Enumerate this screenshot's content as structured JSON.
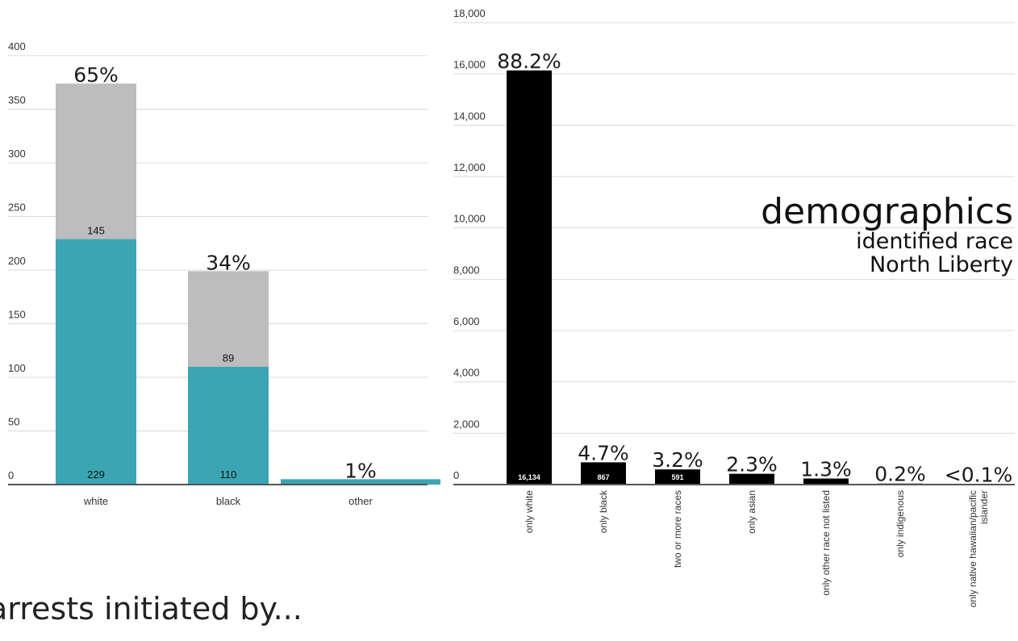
{
  "chart_data": [
    {
      "type": "bar",
      "stacked": true,
      "categories": [
        "white",
        "black",
        "other"
      ],
      "series": [
        {
          "values": [
            229,
            110,
            5
          ],
          "color": "#3ba5b3"
        },
        {
          "values": [
            145,
            89,
            0
          ],
          "color": "#bdbdbd"
        }
      ],
      "segment_labels": [
        [
          "229",
          "110",
          ""
        ],
        [
          "145",
          "89",
          ""
        ]
      ],
      "percent_labels": [
        "65%",
        "34%",
        "1%"
      ],
      "yticks": [
        "0",
        "50",
        "100",
        "150",
        "200",
        "250",
        "300",
        "350",
        "400"
      ],
      "ylim": [
        0,
        400
      ],
      "grid": true
    },
    {
      "type": "bar",
      "categories": [
        "only white",
        "only black",
        "two or more races",
        "only asian",
        "only other race not listed",
        "only indigenous",
        "only native hawaiian/pacific islander"
      ],
      "category_lines": [
        [
          "only white"
        ],
        [
          "only black"
        ],
        [
          "two or more races"
        ],
        [
          "only asian"
        ],
        [
          "only other race not listed"
        ],
        [
          "only indigenous"
        ],
        [
          "only native hawaiian/pacific",
          "islander"
        ]
      ],
      "values": [
        16134,
        867,
        591,
        420,
        235,
        40,
        10
      ],
      "value_labels": [
        "16,134",
        "867",
        "591",
        "",
        "",
        "",
        ""
      ],
      "percent_labels": [
        "88.2%",
        "4.7%",
        "3.2%",
        "2.3%",
        "1.3%",
        "0.2%",
        "<0.1%"
      ],
      "yticks": [
        "0",
        "2,000",
        "4,000",
        "6,000",
        "8,000",
        "10,000",
        "12,000",
        "14,000",
        "16,000",
        "18,000"
      ],
      "ylim": [
        0,
        18000
      ],
      "color": "#000000",
      "grid": true
    }
  ],
  "demographics": {
    "title": "demographics",
    "subtitle_line1": "identified race",
    "subtitle_line2": "North Liberty"
  },
  "caption": "arrests initiated by..."
}
